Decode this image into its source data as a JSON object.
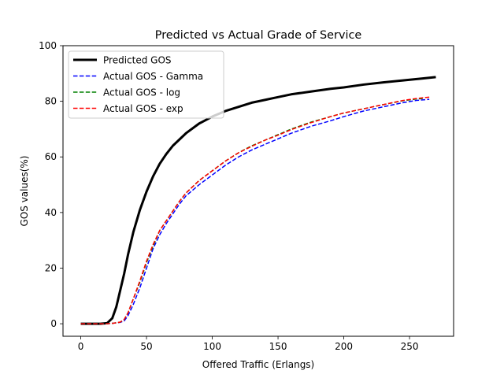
{
  "chart_data": {
    "type": "line",
    "title": "Predicted vs Actual Grade of Service",
    "xlabel": "Offered Traffic (Erlangs)",
    "ylabel": "GOS values(%)",
    "xlim": [
      -13.5,
      283.5
    ],
    "ylim": [
      -4.5,
      100
    ],
    "xticks": [
      0,
      50,
      100,
      150,
      200,
      250
    ],
    "yticks": [
      0,
      20,
      40,
      60,
      80,
      100
    ],
    "grid": false,
    "legend_position": "top-left",
    "series": [
      {
        "name": "Predicted GOS",
        "color": "#000000",
        "style": "solid",
        "x": [
          0,
          10,
          15,
          20,
          24,
          27,
          30,
          33,
          36,
          40,
          45,
          50,
          55,
          60,
          65,
          70,
          80,
          90,
          100,
          110,
          120,
          130,
          140,
          150,
          160,
          175,
          190,
          200,
          215,
          230,
          245,
          260,
          270
        ],
        "y": [
          0,
          0,
          0,
          0.2,
          2,
          6,
          12,
          18,
          25,
          33,
          41,
          47.5,
          53,
          57.5,
          61,
          64,
          68.5,
          72,
          74.5,
          76.5,
          78,
          79.5,
          80.5,
          81.5,
          82.5,
          83.5,
          84.5,
          85,
          86,
          86.8,
          87.5,
          88.2,
          88.7
        ]
      },
      {
        "name": "Actual GOS - Gamma",
        "color": "#0000ff",
        "style": "dashed",
        "x": [
          0,
          10,
          20,
          25,
          30,
          33,
          36,
          40,
          45,
          50,
          55,
          60,
          65,
          70,
          75,
          80,
          90,
          100,
          110,
          120,
          130,
          140,
          150,
          160,
          175,
          190,
          200,
          215,
          230,
          245,
          255,
          265
        ],
        "y": [
          0,
          0,
          0,
          0.2,
          0.5,
          1,
          3,
          7,
          13,
          20,
          27,
          32,
          36,
          39.5,
          43,
          46,
          50,
          53.5,
          57,
          60,
          62.5,
          64.5,
          66.5,
          68.5,
          71,
          73,
          74.5,
          76.5,
          78,
          79.5,
          80.3,
          80.7
        ]
      },
      {
        "name": "Actual GOS - log",
        "color": "#008000",
        "style": "dashed",
        "x": [
          0,
          10,
          20,
          25,
          30,
          33,
          36,
          40,
          45,
          50,
          55,
          60,
          65,
          70,
          75,
          80,
          90,
          100,
          110,
          120,
          130,
          140,
          150,
          160,
          175,
          190,
          200,
          215,
          230,
          245,
          255,
          260
        ],
        "y": [
          0,
          0,
          0,
          0.2,
          0.6,
          1.5,
          4,
          9,
          15,
          22,
          28,
          33.5,
          37,
          40.5,
          44,
          47,
          51.5,
          55,
          58.5,
          61.5,
          64,
          66,
          68,
          70,
          72.5,
          74.5,
          75.8,
          77.3,
          78.8,
          80.2,
          80.8,
          81
        ]
      },
      {
        "name": "Actual GOS - exp",
        "color": "#ff0000",
        "style": "dashed",
        "x": [
          0,
          10,
          20,
          25,
          30,
          33,
          36,
          40,
          45,
          50,
          55,
          60,
          65,
          70,
          75,
          80,
          90,
          100,
          110,
          120,
          130,
          140,
          150,
          160,
          175,
          190,
          200,
          215,
          230,
          245,
          255,
          265
        ],
        "y": [
          0,
          0,
          0,
          0.2,
          0.6,
          1.5,
          4,
          9,
          15.5,
          22.5,
          28.5,
          33.5,
          37,
          40.5,
          44,
          47,
          51.5,
          55,
          58.5,
          61.5,
          63.8,
          66,
          67.8,
          69.8,
          72.3,
          74.5,
          75.8,
          77.3,
          78.8,
          80.3,
          81,
          81.5
        ]
      }
    ]
  }
}
